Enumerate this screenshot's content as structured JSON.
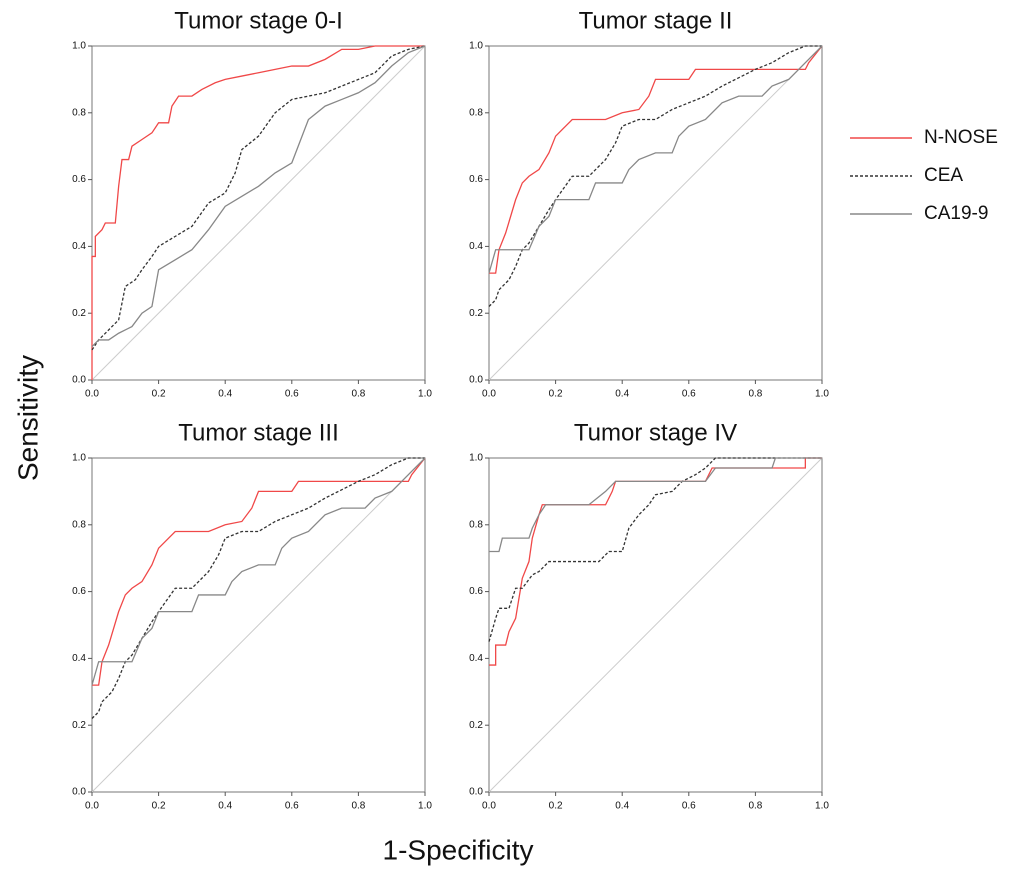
{
  "xlabel": "1-Specificity",
  "ylabel": "Sensitivity",
  "legend_position": "right",
  "chart_data": [
    {
      "type": "line",
      "title": "Tumor stage 0-I",
      "xlim": [
        0,
        1
      ],
      "ylim": [
        0,
        1
      ],
      "reference_line": true,
      "xticks": [
        {
          "value": 0,
          "label": "0.0"
        },
        {
          "value": 0.2,
          "label": "0.2"
        },
        {
          "value": 0.4,
          "label": "0.4"
        },
        {
          "value": 0.6,
          "label": "0.6"
        },
        {
          "value": 0.8,
          "label": "0.8"
        },
        {
          "value": 1,
          "label": "1.0"
        }
      ],
      "yticks": [
        {
          "value": 0,
          "label": "0.0"
        },
        {
          "value": 0.2,
          "label": "0.2"
        },
        {
          "value": 0.4,
          "label": "0.4"
        },
        {
          "value": 0.6,
          "label": "0.6"
        },
        {
          "value": 0.8,
          "label": "0.8"
        },
        {
          "value": 1,
          "label": "1.0"
        }
      ],
      "series": [
        {
          "name": "N-NOSE",
          "color": "#f04848",
          "linestyle": "solid",
          "x": [
            0,
            0,
            0.01,
            0.01,
            0.03,
            0.04,
            0.07,
            0.08,
            0.09,
            0.11,
            0.12,
            0.15,
            0.18,
            0.2,
            0.23,
            0.24,
            0.26,
            0.3,
            0.33,
            0.37,
            0.4,
            0.45,
            0.5,
            0.55,
            0.6,
            0.65,
            0.7,
            0.75,
            0.8,
            0.85,
            1
          ],
          "values": [
            0,
            0.37,
            0.37,
            0.43,
            0.45,
            0.47,
            0.47,
            0.58,
            0.66,
            0.66,
            0.7,
            0.72,
            0.74,
            0.77,
            0.77,
            0.82,
            0.85,
            0.85,
            0.87,
            0.89,
            0.9,
            0.91,
            0.92,
            0.93,
            0.94,
            0.94,
            0.96,
            0.99,
            0.99,
            1,
            1
          ]
        },
        {
          "name": "CEA",
          "color": "#333333",
          "linestyle": "dashed",
          "x": [
            0,
            0.02,
            0.05,
            0.08,
            0.1,
            0.13,
            0.15,
            0.18,
            0.2,
            0.25,
            0.3,
            0.35,
            0.4,
            0.43,
            0.45,
            0.5,
            0.55,
            0.6,
            0.65,
            0.7,
            0.75,
            0.8,
            0.85,
            0.9,
            0.95,
            1
          ],
          "values": [
            0.09,
            0.12,
            0.15,
            0.18,
            0.28,
            0.3,
            0.33,
            0.37,
            0.4,
            0.43,
            0.46,
            0.53,
            0.56,
            0.62,
            0.69,
            0.73,
            0.8,
            0.84,
            0.85,
            0.86,
            0.88,
            0.9,
            0.92,
            0.97,
            0.99,
            1
          ]
        },
        {
          "name": "CA19-9",
          "color": "#888888",
          "linestyle": "solid",
          "x": [
            0,
            0.02,
            0.05,
            0.08,
            0.12,
            0.15,
            0.18,
            0.2,
            0.25,
            0.3,
            0.35,
            0.4,
            0.45,
            0.5,
            0.55,
            0.6,
            0.65,
            0.7,
            0.75,
            0.8,
            0.85,
            0.9,
            0.95,
            1
          ],
          "values": [
            0.1,
            0.12,
            0.12,
            0.14,
            0.16,
            0.2,
            0.22,
            0.33,
            0.36,
            0.39,
            0.45,
            0.52,
            0.55,
            0.58,
            0.62,
            0.65,
            0.78,
            0.82,
            0.84,
            0.86,
            0.89,
            0.94,
            0.98,
            1
          ]
        }
      ]
    },
    {
      "type": "line",
      "title": "Tumor stage II",
      "xlim": [
        0,
        1
      ],
      "ylim": [
        0,
        1
      ],
      "reference_line": true,
      "xticks": [
        {
          "value": 0,
          "label": "0.0"
        },
        {
          "value": 0.2,
          "label": "0.2"
        },
        {
          "value": 0.4,
          "label": "0.4"
        },
        {
          "value": 0.6,
          "label": "0.6"
        },
        {
          "value": 0.8,
          "label": "0.8"
        },
        {
          "value": 1,
          "label": "1.0"
        }
      ],
      "yticks": [
        {
          "value": 0,
          "label": "0.0"
        },
        {
          "value": 0.2,
          "label": "0.2"
        },
        {
          "value": 0.4,
          "label": "0.4"
        },
        {
          "value": 0.6,
          "label": "0.6"
        },
        {
          "value": 0.8,
          "label": "0.8"
        },
        {
          "value": 1,
          "label": "1.0"
        }
      ],
      "series": [
        {
          "name": "N-NOSE",
          "color": "#f04848",
          "linestyle": "solid",
          "x": [
            0,
            0.02,
            0.03,
            0.05,
            0.08,
            0.1,
            0.12,
            0.15,
            0.18,
            0.2,
            0.23,
            0.25,
            0.35,
            0.4,
            0.45,
            0.48,
            0.5,
            0.6,
            0.62,
            0.95,
            0.96,
            1
          ],
          "values": [
            0.32,
            0.32,
            0.39,
            0.44,
            0.54,
            0.59,
            0.61,
            0.63,
            0.68,
            0.73,
            0.76,
            0.78,
            0.78,
            0.8,
            0.81,
            0.85,
            0.9,
            0.9,
            0.93,
            0.93,
            0.95,
            1
          ]
        },
        {
          "name": "CEA",
          "color": "#333333",
          "linestyle": "dashed",
          "x": [
            0,
            0.02,
            0.03,
            0.06,
            0.08,
            0.1,
            0.12,
            0.15,
            0.18,
            0.2,
            0.25,
            0.3,
            0.35,
            0.38,
            0.4,
            0.45,
            0.5,
            0.55,
            0.6,
            0.65,
            0.7,
            0.8,
            0.85,
            0.9,
            0.95,
            1
          ],
          "values": [
            0.22,
            0.24,
            0.27,
            0.3,
            0.34,
            0.39,
            0.41,
            0.46,
            0.51,
            0.54,
            0.61,
            0.61,
            0.66,
            0.71,
            0.76,
            0.78,
            0.78,
            0.81,
            0.83,
            0.85,
            0.88,
            0.93,
            0.95,
            0.98,
            1,
            1
          ]
        },
        {
          "name": "CA19-9",
          "color": "#888888",
          "linestyle": "solid",
          "x": [
            0,
            0.02,
            0.12,
            0.15,
            0.18,
            0.2,
            0.3,
            0.32,
            0.4,
            0.42,
            0.45,
            0.5,
            0.55,
            0.57,
            0.6,
            0.65,
            0.7,
            0.75,
            0.82,
            0.85,
            0.9,
            0.95,
            1
          ],
          "values": [
            0.32,
            0.39,
            0.39,
            0.46,
            0.49,
            0.54,
            0.54,
            0.59,
            0.59,
            0.63,
            0.66,
            0.68,
            0.68,
            0.73,
            0.76,
            0.78,
            0.83,
            0.85,
            0.85,
            0.88,
            0.9,
            0.95,
            1
          ]
        }
      ]
    },
    {
      "type": "line",
      "title": "Tumor stage III",
      "xlim": [
        0,
        1
      ],
      "ylim": [
        0,
        1
      ],
      "reference_line": true,
      "xticks": [
        {
          "value": 0,
          "label": "0.0"
        },
        {
          "value": 0.2,
          "label": "0.2"
        },
        {
          "value": 0.4,
          "label": "0.4"
        },
        {
          "value": 0.6,
          "label": "0.6"
        },
        {
          "value": 0.8,
          "label": "0.8"
        },
        {
          "value": 1,
          "label": "1.0"
        }
      ],
      "yticks": [
        {
          "value": 0,
          "label": "0.0"
        },
        {
          "value": 0.2,
          "label": "0.2"
        },
        {
          "value": 0.4,
          "label": "0.4"
        },
        {
          "value": 0.6,
          "label": "0.6"
        },
        {
          "value": 0.8,
          "label": "0.8"
        },
        {
          "value": 1,
          "label": "1.0"
        }
      ],
      "series": [
        {
          "name": "N-NOSE",
          "color": "#f04848",
          "linestyle": "solid",
          "x": [
            0,
            0.02,
            0.03,
            0.05,
            0.08,
            0.1,
            0.12,
            0.15,
            0.18,
            0.2,
            0.23,
            0.25,
            0.35,
            0.4,
            0.45,
            0.48,
            0.5,
            0.6,
            0.62,
            0.95,
            0.96,
            1
          ],
          "values": [
            0.32,
            0.32,
            0.39,
            0.44,
            0.54,
            0.59,
            0.61,
            0.63,
            0.68,
            0.73,
            0.76,
            0.78,
            0.78,
            0.8,
            0.81,
            0.85,
            0.9,
            0.9,
            0.93,
            0.93,
            0.95,
            1
          ]
        },
        {
          "name": "CEA",
          "color": "#333333",
          "linestyle": "dashed",
          "x": [
            0,
            0.02,
            0.03,
            0.06,
            0.08,
            0.1,
            0.12,
            0.15,
            0.18,
            0.2,
            0.25,
            0.3,
            0.35,
            0.38,
            0.4,
            0.45,
            0.5,
            0.55,
            0.6,
            0.65,
            0.7,
            0.8,
            0.85,
            0.9,
            0.95,
            1
          ],
          "values": [
            0.22,
            0.24,
            0.27,
            0.3,
            0.34,
            0.39,
            0.41,
            0.46,
            0.51,
            0.54,
            0.61,
            0.61,
            0.66,
            0.71,
            0.76,
            0.78,
            0.78,
            0.81,
            0.83,
            0.85,
            0.88,
            0.93,
            0.95,
            0.98,
            1,
            1
          ]
        },
        {
          "name": "CA19-9",
          "color": "#888888",
          "linestyle": "solid",
          "x": [
            0,
            0.02,
            0.12,
            0.15,
            0.18,
            0.2,
            0.3,
            0.32,
            0.4,
            0.42,
            0.45,
            0.5,
            0.55,
            0.57,
            0.6,
            0.65,
            0.7,
            0.75,
            0.82,
            0.85,
            0.9,
            0.95,
            1
          ],
          "values": [
            0.32,
            0.39,
            0.39,
            0.46,
            0.49,
            0.54,
            0.54,
            0.59,
            0.59,
            0.63,
            0.66,
            0.68,
            0.68,
            0.73,
            0.76,
            0.78,
            0.83,
            0.85,
            0.85,
            0.88,
            0.9,
            0.95,
            1
          ]
        }
      ]
    },
    {
      "type": "line",
      "title": "Tumor stage IV",
      "xlim": [
        0,
        1
      ],
      "ylim": [
        0,
        1
      ],
      "reference_line": true,
      "xticks": [
        {
          "value": 0,
          "label": "0.0"
        },
        {
          "value": 0.2,
          "label": "0.2"
        },
        {
          "value": 0.4,
          "label": "0.4"
        },
        {
          "value": 0.6,
          "label": "0.6"
        },
        {
          "value": 0.8,
          "label": "0.8"
        },
        {
          "value": 1,
          "label": "1.0"
        }
      ],
      "yticks": [
        {
          "value": 0,
          "label": "0.0"
        },
        {
          "value": 0.2,
          "label": "0.2"
        },
        {
          "value": 0.4,
          "label": "0.4"
        },
        {
          "value": 0.6,
          "label": "0.6"
        },
        {
          "value": 0.8,
          "label": "0.8"
        },
        {
          "value": 1,
          "label": "1.0"
        }
      ],
      "series": [
        {
          "name": "N-NOSE",
          "color": "#f04848",
          "linestyle": "solid",
          "x": [
            0,
            0.02,
            0.02,
            0.05,
            0.06,
            0.08,
            0.09,
            0.1,
            0.12,
            0.13,
            0.15,
            0.16,
            0.35,
            0.37,
            0.38,
            0.65,
            0.67,
            0.95,
            0.95,
            1
          ],
          "values": [
            0.38,
            0.38,
            0.44,
            0.44,
            0.48,
            0.52,
            0.58,
            0.64,
            0.69,
            0.76,
            0.83,
            0.86,
            0.86,
            0.9,
            0.93,
            0.93,
            0.97,
            0.97,
            1,
            1
          ]
        },
        {
          "name": "CEA",
          "color": "#333333",
          "linestyle": "dashed",
          "x": [
            0,
            0.02,
            0.03,
            0.06,
            0.08,
            0.1,
            0.13,
            0.15,
            0.18,
            0.33,
            0.36,
            0.4,
            0.42,
            0.45,
            0.48,
            0.5,
            0.55,
            0.58,
            0.62,
            0.65,
            0.68,
            1
          ],
          "values": [
            0.45,
            0.52,
            0.55,
            0.55,
            0.61,
            0.61,
            0.65,
            0.66,
            0.69,
            0.69,
            0.72,
            0.72,
            0.79,
            0.83,
            0.86,
            0.89,
            0.9,
            0.93,
            0.95,
            0.97,
            1,
            1
          ]
        },
        {
          "name": "CA19-9",
          "color": "#888888",
          "linestyle": "solid",
          "x": [
            0,
            0.03,
            0.04,
            0.12,
            0.13,
            0.15,
            0.17,
            0.3,
            0.35,
            0.38,
            0.65,
            0.68,
            0.85,
            0.86,
            1
          ],
          "values": [
            0.72,
            0.72,
            0.76,
            0.76,
            0.79,
            0.83,
            0.86,
            0.86,
            0.9,
            0.93,
            0.93,
            0.97,
            0.97,
            1,
            1
          ]
        }
      ]
    }
  ]
}
